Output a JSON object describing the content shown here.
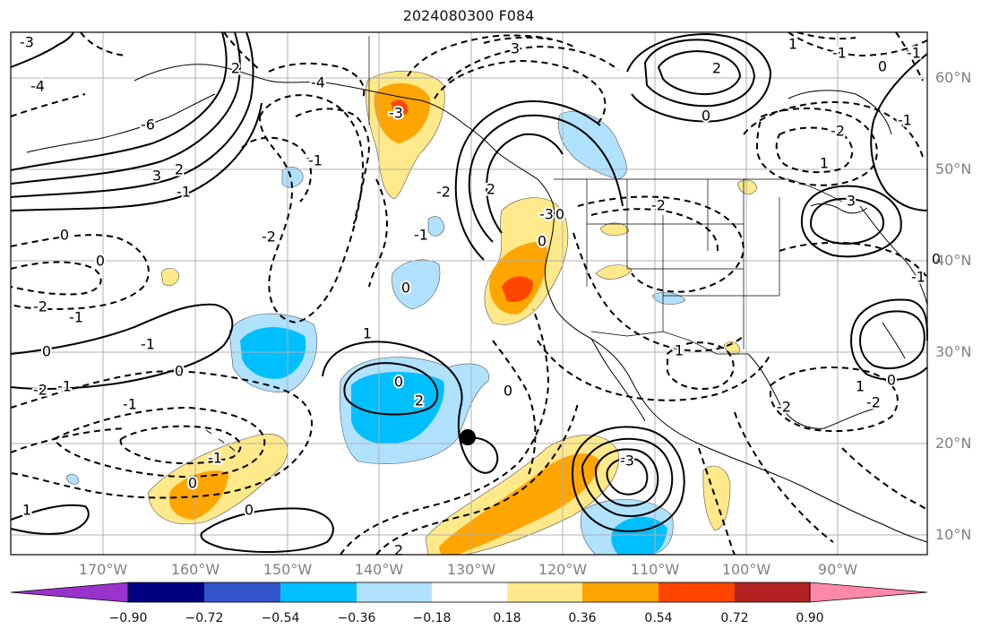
{
  "title": "2024080300 F084",
  "latitude_labels": [
    "60°N",
    "50°N",
    "40°N",
    "30°N",
    "20°N",
    "10°N"
  ],
  "longitude_labels": [
    "170°W",
    "160°W",
    "150°W",
    "140°W",
    "130°W",
    "120°W",
    "110°W",
    "100°W",
    "90°W"
  ],
  "colorbar": {
    "ticks": [
      "−0.90",
      "−0.72",
      "−0.54",
      "−0.36",
      "−0.18",
      "0.18",
      "0.36",
      "0.54",
      "0.72",
      "0.90"
    ],
    "colors": [
      "#9933cc",
      "#000080",
      "#3355cc",
      "#00bfff",
      "#b0e2ff",
      "#ffffff",
      "#ffe98a",
      "#ffa500",
      "#ff4500",
      "#b22222",
      "#ff88aa"
    ]
  },
  "contour_labels": [
    "-3",
    "-4",
    "2",
    "-6",
    "3",
    "2",
    "-1",
    "0",
    "0",
    "-2",
    "-1",
    "0",
    "-1",
    "-4",
    "-3",
    "-1",
    "-2",
    "2",
    "-1",
    "-2",
    "0",
    "-2",
    "-1",
    "0",
    "1",
    "0",
    "-1",
    "2",
    "3",
    "2",
    "0",
    "1",
    "-1",
    "-2",
    "1",
    "-2",
    "0",
    "0",
    "-3",
    "2",
    "0",
    "1",
    "-2",
    "1",
    "0",
    "-2",
    "-1",
    "0",
    "1",
    "-1",
    "0",
    "-3",
    "3",
    "-1",
    "-1",
    "0",
    "0"
  ]
}
